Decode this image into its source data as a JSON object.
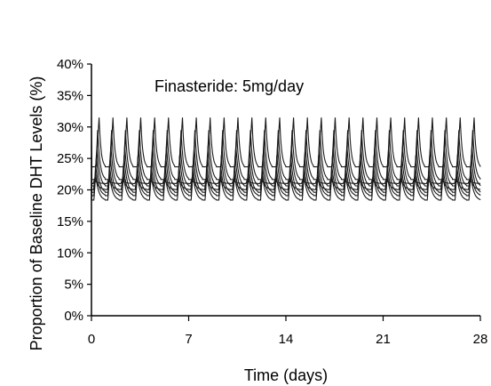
{
  "chart_data": {
    "type": "line",
    "annotation": "Finasteride: 5mg/day",
    "xlabel": "Time (days)",
    "ylabel": "Proportion of Baseline DHT Levels (%)",
    "xlim": [
      0,
      28
    ],
    "ylim": [
      0,
      40
    ],
    "x_ticks": [
      "0",
      "7",
      "14",
      "21",
      "28"
    ],
    "x_tick_values": [
      0,
      7,
      14,
      21,
      28
    ],
    "y_ticks": [
      "0%",
      "5%",
      "10%",
      "15%",
      "20%",
      "25%",
      "30%",
      "35%",
      "40%"
    ],
    "y_tick_values": [
      0,
      5,
      10,
      15,
      20,
      25,
      30,
      35,
      40
    ],
    "period_days": 1,
    "grid": false,
    "legend": "none",
    "series": [
      {
        "peak_day_fraction": 0.55,
        "trough": 23.5,
        "peak": 31.5
      },
      {
        "peak_day_fraction": 0.45,
        "trough": 21.5,
        "peak": 29.5
      },
      {
        "peak_day_fraction": 0.4,
        "trough": 20.5,
        "peak": 27.0
      },
      {
        "peak_day_fraction": 0.35,
        "trough": 19.5,
        "peak": 25.5
      },
      {
        "peak_day_fraction": 0.3,
        "trough": 19.0,
        "peak": 24.0
      },
      {
        "peak_day_fraction": 0.3,
        "trough": 18.3,
        "peak": 22.5
      },
      {
        "peak_day_fraction": 0.25,
        "trough": 20.0,
        "peak": 22.0
      },
      {
        "peak_day_fraction": 0.2,
        "trough": 21.0,
        "peak": 21.5
      }
    ],
    "line_color": "#1a1a1a"
  }
}
